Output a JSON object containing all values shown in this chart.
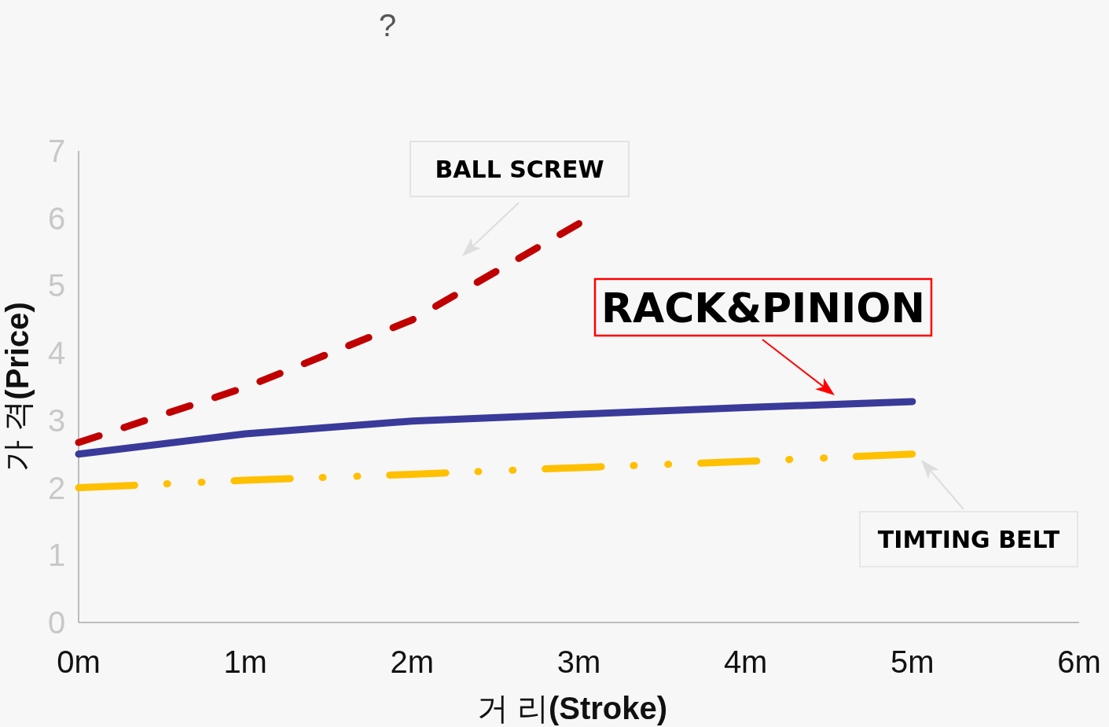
{
  "chart_data": {
    "type": "line",
    "title": "?",
    "xlabel": "거 리**(Stroke)**",
    "ylabel": "가 격**(Price)**",
    "xlim": [
      0,
      6
    ],
    "xticks": [
      {
        "value": 0,
        "label": "0m"
      },
      {
        "value": 1,
        "label": "1m"
      },
      {
        "value": 2,
        "label": "2m"
      },
      {
        "value": 3,
        "label": "3m"
      },
      {
        "value": 4,
        "label": "4m"
      },
      {
        "value": 5,
        "label": "5m"
      },
      {
        "value": 6,
        "label": "6m"
      }
    ],
    "ylim": [
      0,
      7
    ],
    "yticks": [
      0,
      1,
      2,
      3,
      4,
      5,
      6,
      7
    ],
    "grid": false,
    "legend": false,
    "marker": "none",
    "series": [
      {
        "name": "BALL SCREW",
        "color": "#c00000",
        "line_style": "dashed",
        "x": [
          0,
          1,
          2,
          3
        ],
        "values": [
          2.67,
          3.49,
          4.49,
          5.92
        ]
      },
      {
        "name": "RACK&PINION",
        "color": "#3a3a9a",
        "line_style": "solid",
        "x": [
          0,
          1,
          2,
          3,
          4,
          5
        ],
        "values": [
          2.5,
          2.8,
          2.99,
          3.09,
          3.19,
          3.28
        ]
      },
      {
        "name": "TIMTING BELT",
        "color": "#ffc000",
        "line_style": "dashdot",
        "x": [
          0,
          1,
          2,
          3,
          4,
          5
        ],
        "values": [
          2.0,
          2.11,
          2.2,
          2.3,
          2.39,
          2.5
        ]
      }
    ]
  }
}
